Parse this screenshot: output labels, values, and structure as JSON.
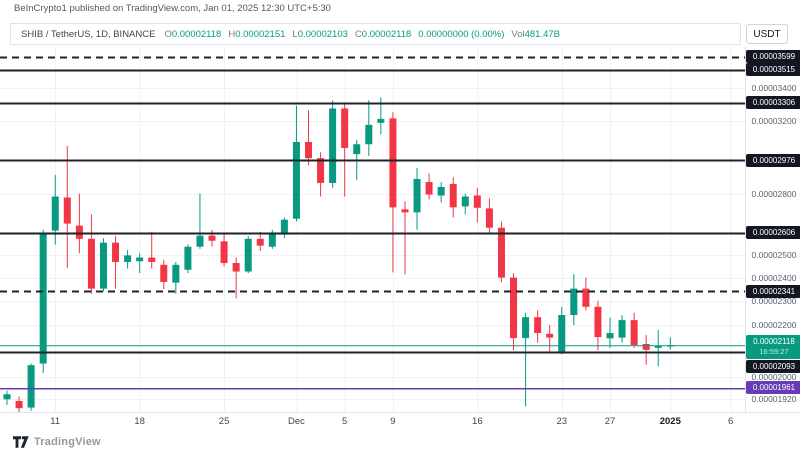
{
  "header": {
    "attribution": "BeInCrypto1 published on TradingView.com, Jan 01, 2025 12:30 UTC+5:30"
  },
  "legend": {
    "symbol": "SHIB / TetherUS, 1D, BINANCE",
    "ohlc": [
      {
        "label": "O",
        "value": "0.00002118"
      },
      {
        "label": "H",
        "value": "0.00002151"
      },
      {
        "label": "L",
        "value": "0.00002103"
      },
      {
        "label": "C",
        "value": "0.00002118"
      }
    ],
    "change": "0.00000000 (0.00%)",
    "vol_label": "Vol",
    "vol_value": "481.47B"
  },
  "axis": {
    "currency": "USDT"
  },
  "watermark": {
    "text": "TradingView"
  },
  "colors": {
    "up": "#089981",
    "down": "#f23645",
    "level_line": "#1e222d",
    "purple_level": "#673ab7",
    "current_price": "#089981",
    "grid": "#eef1f6",
    "axis_border": "#e0e3eb",
    "badge_bg": "#131722",
    "badge_text": "#ffffff"
  },
  "chart_data": {
    "type": "candlestick",
    "symbol": "SHIB/USDT",
    "exchange": "BINANCE",
    "timeframe": "1D",
    "price_scale": "logarithmic",
    "y_axis_labels": [
      3.4e-05,
      3.2e-05,
      2.8e-05,
      2.5e-05,
      2.4e-05,
      2.3e-05,
      2.2e-05,
      2e-05,
      1.92e-05
    ],
    "levels": [
      {
        "value": 3.599e-05,
        "style": "dashed",
        "color": "#1e222d"
      },
      {
        "value": 3.515e-05,
        "style": "solid",
        "color": "#1e222d"
      },
      {
        "value": 3.306e-05,
        "style": "solid",
        "color": "#1e222d"
      },
      {
        "value": 2.976e-05,
        "style": "solid",
        "color": "#1e222d"
      },
      {
        "value": 2.606e-05,
        "style": "solid",
        "color": "#1e222d"
      },
      {
        "value": 2.341e-05,
        "style": "dashed",
        "color": "#1e222d"
      },
      {
        "value": 2.093e-05,
        "style": "solid",
        "color": "#1e222d"
      },
      {
        "value": 1.961e-05,
        "style": "solid",
        "color": "#673ab7"
      }
    ],
    "current_price": {
      "value": 2.118e-05,
      "countdown": "16:59:27"
    },
    "x_ticks": [
      {
        "label": "11",
        "i": 4
      },
      {
        "label": "18",
        "i": 11
      },
      {
        "label": "25",
        "i": 18
      },
      {
        "label": "Dec",
        "i": 24
      },
      {
        "label": "5",
        "i": 28
      },
      {
        "label": "9",
        "i": 32
      },
      {
        "label": "16",
        "i": 39
      },
      {
        "label": "23",
        "i": 46
      },
      {
        "label": "27",
        "i": 50
      },
      {
        "label": "2025",
        "i": 55,
        "bold": true
      },
      {
        "label": "6",
        "i": 60
      }
    ],
    "candles": [
      {
        "t": "Nov 7",
        "o": 1.92e-05,
        "h": 1.95e-05,
        "l": 1.9e-05,
        "c": 1.938e-05
      },
      {
        "t": "Nov 8",
        "o": 1.914e-05,
        "h": 1.93e-05,
        "l": 1.875e-05,
        "c": 1.889e-05
      },
      {
        "t": "Nov 9",
        "o": 1.891e-05,
        "h": 2.05e-05,
        "l": 1.88e-05,
        "c": 2.044e-05
      },
      {
        "t": "Nov 10",
        "o": 2.05e-05,
        "h": 2.62e-05,
        "l": 2.015e-05,
        "c": 2.606e-05
      },
      {
        "t": "Nov 11",
        "o": 2.616e-05,
        "h": 2.897e-05,
        "l": 2.55e-05,
        "c": 2.785e-05
      },
      {
        "t": "Nov 12",
        "o": 2.78e-05,
        "h": 3.057e-05,
        "l": 2.443e-05,
        "c": 2.65e-05
      },
      {
        "t": "Nov 13",
        "o": 2.64e-05,
        "h": 2.8e-05,
        "l": 2.51e-05,
        "c": 2.577e-05
      },
      {
        "t": "Nov 14",
        "o": 2.577e-05,
        "h": 2.695e-05,
        "l": 2.33e-05,
        "c": 2.352e-05
      },
      {
        "t": "Nov 15",
        "o": 2.352e-05,
        "h": 2.58e-05,
        "l": 2.34e-05,
        "c": 2.559e-05
      },
      {
        "t": "Nov 16",
        "o": 2.559e-05,
        "h": 2.59e-05,
        "l": 2.352e-05,
        "c": 2.47e-05
      },
      {
        "t": "Nov 17",
        "o": 2.47e-05,
        "h": 2.525e-05,
        "l": 2.44e-05,
        "c": 2.5e-05
      },
      {
        "t": "Nov 18",
        "o": 2.473e-05,
        "h": 2.51e-05,
        "l": 2.42e-05,
        "c": 2.49e-05
      },
      {
        "t": "Nov 19",
        "o": 2.49e-05,
        "h": 2.61e-05,
        "l": 2.44e-05,
        "c": 2.47e-05
      },
      {
        "t": "Nov 20",
        "o": 2.457e-05,
        "h": 2.48e-05,
        "l": 2.35e-05,
        "c": 2.381e-05
      },
      {
        "t": "Nov 21",
        "o": 2.378e-05,
        "h": 2.47e-05,
        "l": 2.33e-05,
        "c": 2.457e-05
      },
      {
        "t": "Nov 22",
        "o": 2.435e-05,
        "h": 2.55e-05,
        "l": 2.42e-05,
        "c": 2.54e-05
      },
      {
        "t": "Nov 23",
        "o": 2.54e-05,
        "h": 2.8e-05,
        "l": 2.53e-05,
        "c": 2.592e-05
      },
      {
        "t": "Nov 24",
        "o": 2.592e-05,
        "h": 2.62e-05,
        "l": 2.54e-05,
        "c": 2.568e-05
      },
      {
        "t": "Nov 25",
        "o": 2.565e-05,
        "h": 2.6e-05,
        "l": 2.45e-05,
        "c": 2.465e-05
      },
      {
        "t": "Nov 26",
        "o": 2.465e-05,
        "h": 2.49e-05,
        "l": 2.31e-05,
        "c": 2.427e-05
      },
      {
        "t": "Nov 27",
        "o": 2.427e-05,
        "h": 2.59e-05,
        "l": 2.42e-05,
        "c": 2.577e-05
      },
      {
        "t": "Nov 28",
        "o": 2.577e-05,
        "h": 2.61e-05,
        "l": 2.52e-05,
        "c": 2.545e-05
      },
      {
        "t": "Nov 29",
        "o": 2.54e-05,
        "h": 2.62e-05,
        "l": 2.53e-05,
        "c": 2.606e-05
      },
      {
        "t": "Nov 30",
        "o": 2.597e-05,
        "h": 2.68e-05,
        "l": 2.58e-05,
        "c": 2.669e-05
      },
      {
        "t": "Dec 1",
        "o": 2.674e-05,
        "h": 3.29e-05,
        "l": 2.66e-05,
        "c": 3.078e-05
      },
      {
        "t": "Dec 2",
        "o": 3.078e-05,
        "h": 3.262e-05,
        "l": 2.95e-05,
        "c": 2.988e-05
      },
      {
        "t": "Dec 3",
        "o": 2.988e-05,
        "h": 3.02e-05,
        "l": 2.785e-05,
        "c": 2.855e-05
      },
      {
        "t": "Dec 4",
        "o": 2.855e-05,
        "h": 3.322e-05,
        "l": 2.83e-05,
        "c": 3.273e-05
      },
      {
        "t": "Dec 5",
        "o": 3.273e-05,
        "h": 3.3e-05,
        "l": 2.785e-05,
        "c": 3.044e-05
      },
      {
        "t": "Dec 6",
        "o": 3.01e-05,
        "h": 3.09e-05,
        "l": 2.87e-05,
        "c": 3.065e-05
      },
      {
        "t": "Dec 7",
        "o": 3.065e-05,
        "h": 3.322e-05,
        "l": 3e-05,
        "c": 3.176e-05
      },
      {
        "t": "Dec 8",
        "o": 3.188e-05,
        "h": 3.341e-05,
        "l": 3.12e-05,
        "c": 3.211e-05
      },
      {
        "t": "Dec 9",
        "o": 3.214e-05,
        "h": 3.25e-05,
        "l": 2.423e-05,
        "c": 2.73e-05
      },
      {
        "t": "Dec 10",
        "o": 2.72e-05,
        "h": 2.76e-05,
        "l": 2.414e-05,
        "c": 2.705e-05
      },
      {
        "t": "Dec 11",
        "o": 2.705e-05,
        "h": 2.935e-05,
        "l": 2.62e-05,
        "c": 2.876e-05
      },
      {
        "t": "Dec 12",
        "o": 2.86e-05,
        "h": 2.905e-05,
        "l": 2.77e-05,
        "c": 2.795e-05
      },
      {
        "t": "Dec 13",
        "o": 2.79e-05,
        "h": 2.86e-05,
        "l": 2.755e-05,
        "c": 2.834e-05
      },
      {
        "t": "Dec 14",
        "o": 2.85e-05,
        "h": 2.885e-05,
        "l": 2.68e-05,
        "c": 2.73e-05
      },
      {
        "t": "Dec 15",
        "o": 2.735e-05,
        "h": 2.8e-05,
        "l": 2.695e-05,
        "c": 2.785e-05
      },
      {
        "t": "Dec 16",
        "o": 2.79e-05,
        "h": 2.83e-05,
        "l": 2.655e-05,
        "c": 2.728e-05
      },
      {
        "t": "Dec 17",
        "o": 2.725e-05,
        "h": 2.775e-05,
        "l": 2.6e-05,
        "c": 2.63e-05
      },
      {
        "t": "Dec 18",
        "o": 2.63e-05,
        "h": 2.66e-05,
        "l": 2.38e-05,
        "c": 2.4e-05
      },
      {
        "t": "Dec 19",
        "o": 2.4e-05,
        "h": 2.42e-05,
        "l": 2.1e-05,
        "c": 2.148e-05
      },
      {
        "t": "Dec 20",
        "o": 2.148e-05,
        "h": 2.25e-05,
        "l": 1.895e-05,
        "c": 2.232e-05
      },
      {
        "t": "Dec 21",
        "o": 2.232e-05,
        "h": 2.26e-05,
        "l": 2.13e-05,
        "c": 2.168e-05
      },
      {
        "t": "Dec 22",
        "o": 2.165e-05,
        "h": 2.2e-05,
        "l": 2.09e-05,
        "c": 2.15e-05
      },
      {
        "t": "Dec 23",
        "o": 2.094e-05,
        "h": 2.274e-05,
        "l": 2.085e-05,
        "c": 2.241e-05
      },
      {
        "t": "Dec 24",
        "o": 2.241e-05,
        "h": 2.415e-05,
        "l": 2.2e-05,
        "c": 2.352e-05
      },
      {
        "t": "Dec 25",
        "o": 2.352e-05,
        "h": 2.4e-05,
        "l": 2.26e-05,
        "c": 2.275e-05
      },
      {
        "t": "Dec 26",
        "o": 2.275e-05,
        "h": 2.3e-05,
        "l": 2.1e-05,
        "c": 2.152e-05
      },
      {
        "t": "Dec 27",
        "o": 2.147e-05,
        "h": 2.23e-05,
        "l": 2.11e-05,
        "c": 2.168e-05
      },
      {
        "t": "Dec 28",
        "o": 2.15e-05,
        "h": 2.24e-05,
        "l": 2.13e-05,
        "c": 2.22e-05
      },
      {
        "t": "Dec 29",
        "o": 2.22e-05,
        "h": 2.25e-05,
        "l": 2.11e-05,
        "c": 2.121e-05
      },
      {
        "t": "Dec 30",
        "o": 2.125e-05,
        "h": 2.16e-05,
        "l": 2.045e-05,
        "c": 2.102e-05
      },
      {
        "t": "Dec 31",
        "o": 2.11e-05,
        "h": 2.18e-05,
        "l": 2.04e-05,
        "c": 2.118e-05
      },
      {
        "t": "Jan 1",
        "o": 2.118e-05,
        "h": 2.151e-05,
        "l": 2.103e-05,
        "c": 2.118e-05
      }
    ]
  }
}
